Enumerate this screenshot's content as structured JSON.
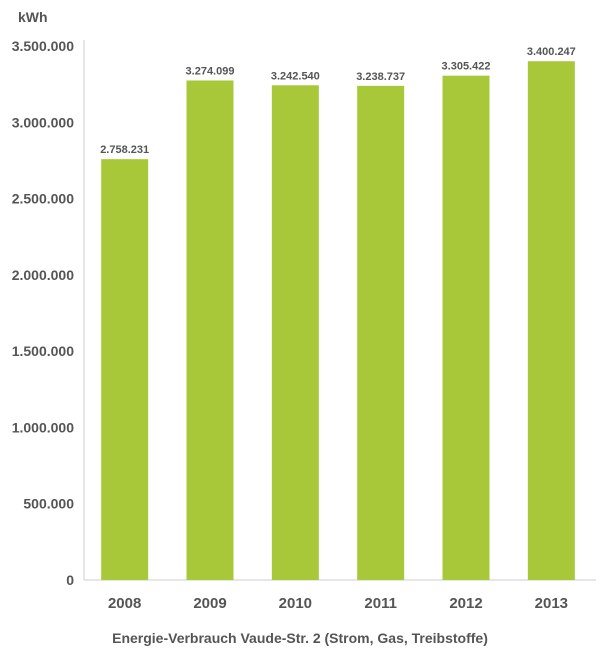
{
  "chart_data": {
    "type": "bar",
    "title": "",
    "caption": "Energie-Verbrauch Vaude-Str. 2 (Strom, Gas, Treibstoffe)",
    "ylabel": "kWh",
    "xlabel": "",
    "categories": [
      "2008",
      "2009",
      "2010",
      "2011",
      "2012",
      "2013"
    ],
    "values": [
      2758231,
      3274099,
      3242540,
      3238737,
      3305422,
      3400247
    ],
    "value_labels": [
      "2.758.231",
      "3.274.099",
      "3.242.540",
      "3.238.737",
      "3.305.422",
      "3.400.247"
    ],
    "ylim": [
      0,
      3500000
    ],
    "yticks": [
      0,
      500000,
      1000000,
      1500000,
      2000000,
      2500000,
      3000000,
      3500000
    ],
    "ytick_labels": [
      "0",
      "500.000",
      "1.000.000",
      "1.500.000",
      "2.000.000",
      "2.500.000",
      "3.000.000",
      "3.500.000"
    ],
    "grid": false,
    "legend": "none",
    "bar_color": "#a8c83a",
    "axis_color": "#cccccc",
    "text_color": "#555555"
  }
}
